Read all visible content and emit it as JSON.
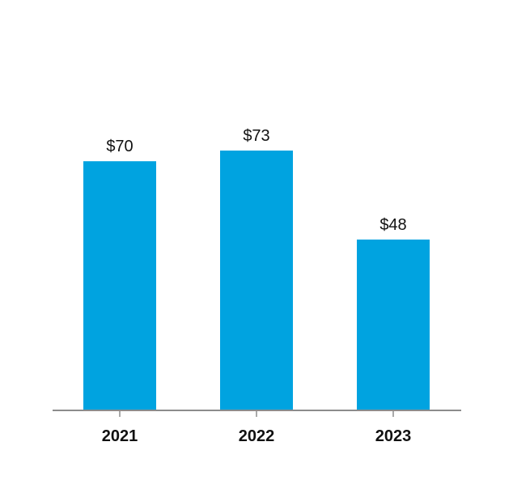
{
  "chart_data": {
    "type": "bar",
    "categories": [
      "2021",
      "2022",
      "2023"
    ],
    "values": [
      70,
      73,
      48
    ],
    "value_labels": [
      "$70",
      "$73",
      "$48"
    ],
    "title": "",
    "xlabel": "",
    "ylabel": "",
    "ylim": [
      0,
      73
    ],
    "grid": false,
    "legend": "none",
    "colors": {
      "bar": "#00a3e0",
      "axis": "#8c8c8c",
      "text": "#111111"
    }
  }
}
